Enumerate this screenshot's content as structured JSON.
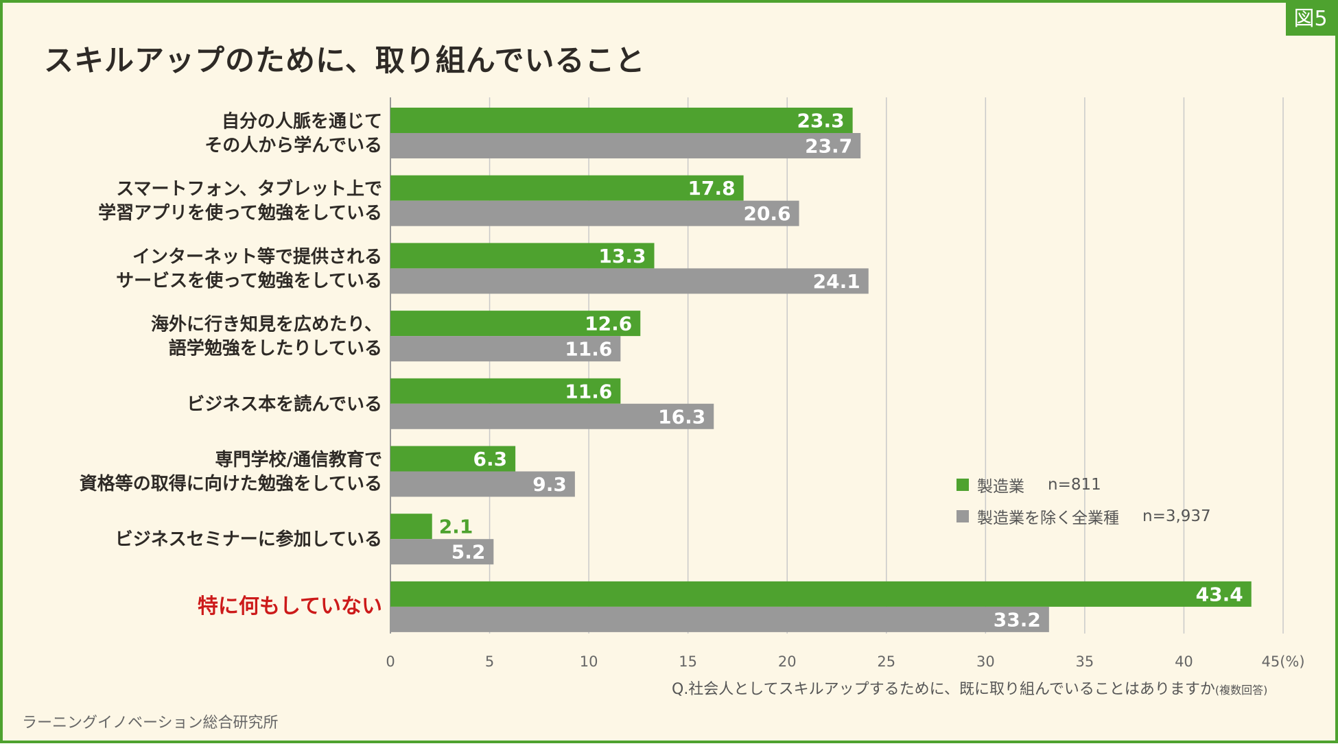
{
  "badge": "図5",
  "question": {
    "text": "Q.社会人としてスキルアップするために、既に取り組んでいることはありますか",
    "note": "(複数回答)"
  },
  "source": "ラーニングイノベーション総合研究所",
  "legend": {
    "items": [
      {
        "label": "製造業",
        "n": "n=811",
        "color": "#4ea22f"
      },
      {
        "label": "製造業を除く全業種",
        "n": "n=3,937",
        "color": "#999999"
      }
    ]
  },
  "chart_data": {
    "type": "bar",
    "orientation": "horizontal",
    "title": "スキルアップのために、取り組んでいること",
    "categories": [
      [
        "自分の人脈を通じて",
        "その人から学んでいる"
      ],
      [
        "スマートフォン、タブレット上で",
        "学習アプリを使って勉強をしている"
      ],
      [
        "インターネット等で提供される",
        "サービスを使って勉強をしている"
      ],
      [
        "海外に行き知見を広めたり、",
        "語学勉強をしたりしている"
      ],
      [
        "ビジネス本を読んでいる"
      ],
      [
        "専門学校/通信教育で",
        "資格等の取得に向けた勉強をしている"
      ],
      [
        "ビジネスセミナーに参加している"
      ],
      [
        "特に何もしていない"
      ]
    ],
    "highlight_category_index": 7,
    "highlight_color": "#cc1a1a",
    "series": [
      {
        "name": "製造業",
        "color": "#4ea22f",
        "values": [
          23.3,
          17.8,
          13.3,
          12.6,
          11.6,
          6.3,
          2.1,
          43.4
        ]
      },
      {
        "name": "製造業を除く全業種",
        "color": "#999999",
        "values": [
          23.7,
          20.6,
          24.1,
          11.6,
          16.3,
          9.3,
          5.2,
          33.2
        ]
      }
    ],
    "xlim": [
      0,
      45
    ],
    "xticks": [
      "0",
      "5",
      "10",
      "15",
      "20",
      "25",
      "30",
      "35",
      "40",
      "45(%)"
    ],
    "grid": true,
    "legend_position": "bottom-right inside plot"
  }
}
